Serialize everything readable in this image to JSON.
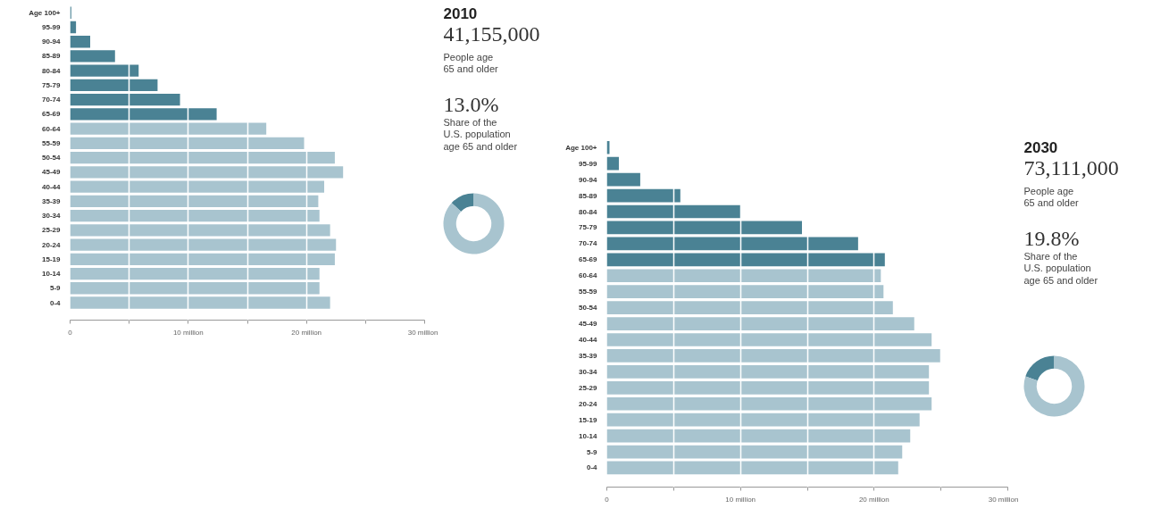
{
  "chart_data": [
    {
      "type": "bar",
      "orientation": "horizontal",
      "categories": [
        "Age 100+",
        "95-99",
        "90-94",
        "85-89",
        "80-84",
        "75-79",
        "70-74",
        "65-69",
        "60-64",
        "55-59",
        "50-54",
        "45-49",
        "40-44",
        "35-39",
        "30-34",
        "25-29",
        "20-24",
        "15-19",
        "10-14",
        "5-9",
        "0-4"
      ],
      "values": [
        0.1,
        0.5,
        1.7,
        3.8,
        5.8,
        7.4,
        9.3,
        12.4,
        16.6,
        19.8,
        22.4,
        23.1,
        21.5,
        21.0,
        21.1,
        22.0,
        22.5,
        22.4,
        21.1,
        21.1,
        22.0
      ],
      "colors": [
        "#4a8294",
        "#4a8294",
        "#4a8294",
        "#4a8294",
        "#4a8294",
        "#4a8294",
        "#4a8294",
        "#4a8294",
        "#a8c4cf",
        "#a8c4cf",
        "#a8c4cf",
        "#a8c4cf",
        "#a8c4cf",
        "#a8c4cf",
        "#a8c4cf",
        "#a8c4cf",
        "#a8c4cf",
        "#a8c4cf",
        "#a8c4cf",
        "#a8c4cf",
        "#a8c4cf"
      ],
      "xlim": [
        0,
        30
      ],
      "xticks": [
        {
          "value": 0,
          "label": "0"
        },
        {
          "value": 5,
          "label": null
        },
        {
          "value": 10,
          "label": "10 million"
        },
        {
          "value": 15,
          "label": null
        },
        {
          "value": 20,
          "label": "20 million"
        },
        {
          "value": 25,
          "label": null
        },
        {
          "value": 30,
          "label": "30 million"
        }
      ],
      "grid": "x"
    },
    {
      "type": "donut",
      "title": "2010",
      "annotations": [
        "41,155,000",
        "People age\n65 and older",
        "13.0%",
        "Share of the\nU.S. population\nage 65 and older"
      ],
      "categories": [
        null,
        null
      ],
      "values": [
        13.0,
        87.0
      ],
      "colors": [
        "#4a8294",
        "#a8c4cf"
      ]
    },
    {
      "type": "bar",
      "orientation": "horizontal",
      "categories": [
        "Age 100+",
        "95-99",
        "90-94",
        "85-89",
        "80-84",
        "75-79",
        "70-74",
        "65-69",
        "60-64",
        "55-59",
        "50-54",
        "45-49",
        "40-44",
        "35-39",
        "30-34",
        "25-29",
        "20-24",
        "15-19",
        "10-14",
        "5-9",
        "0-4"
      ],
      "values": [
        0.2,
        0.9,
        2.5,
        5.5,
        10.0,
        14.6,
        18.8,
        20.8,
        20.5,
        20.7,
        21.4,
        23.0,
        24.3,
        25.0,
        24.1,
        24.1,
        24.3,
        23.4,
        22.7,
        22.1,
        21.8
      ],
      "colors": [
        "#4a8294",
        "#4a8294",
        "#4a8294",
        "#4a8294",
        "#4a8294",
        "#4a8294",
        "#4a8294",
        "#4a8294",
        "#a8c4cf",
        "#a8c4cf",
        "#a8c4cf",
        "#a8c4cf",
        "#a8c4cf",
        "#a8c4cf",
        "#a8c4cf",
        "#a8c4cf",
        "#a8c4cf",
        "#a8c4cf",
        "#a8c4cf",
        "#a8c4cf",
        "#a8c4cf"
      ],
      "xlim": [
        0,
        30
      ],
      "xticks": [
        {
          "value": 0,
          "label": "0"
        },
        {
          "value": 5,
          "label": null
        },
        {
          "value": 10,
          "label": "10 million"
        },
        {
          "value": 15,
          "label": null
        },
        {
          "value": 20,
          "label": "20 million"
        },
        {
          "value": 25,
          "label": null
        },
        {
          "value": 30,
          "label": "30 million"
        }
      ],
      "grid": "x"
    },
    {
      "type": "donut",
      "title": "2030",
      "annotations": [
        "73,111,000",
        "People age\n65 and older",
        "19.8%",
        "Share of the\nU.S. population\nage 65 and older"
      ],
      "categories": [
        null,
        null
      ],
      "values": [
        19.8,
        80.2
      ],
      "colors": [
        "#4a8294",
        "#a8c4cf"
      ]
    }
  ]
}
